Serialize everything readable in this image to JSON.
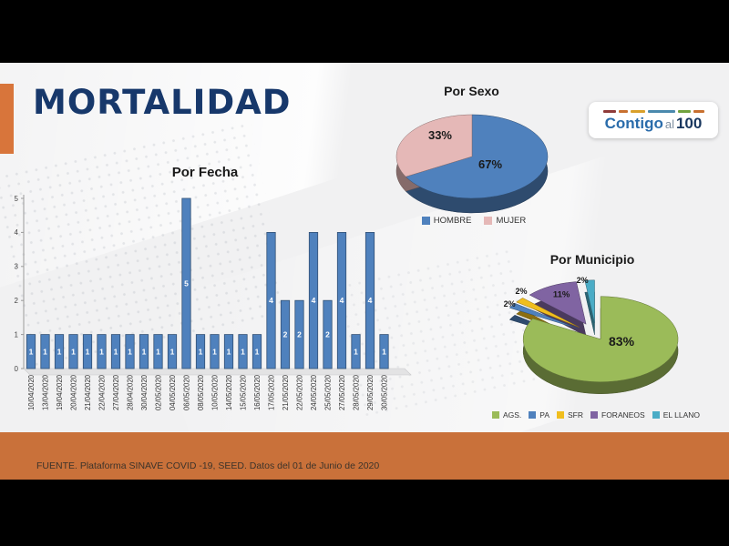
{
  "slide": {
    "title": "MORTALIDAD",
    "footer_text": "FUENTE. Plataforma SINAVE COVID -19, SEED. Datos del 01 de Junio de 2020",
    "logo": {
      "word1": "Contigo",
      "word2": "al",
      "word3": "100",
      "dash_colors": [
        "#8f3b39",
        "#c8702f",
        "#d9a02b",
        "#4a89ad",
        "#71a23e",
        "#c8702f"
      ]
    },
    "colors": {
      "accent_orange": "#D8753B",
      "footer_orange": "#C9713A",
      "title_navy": "#17386B"
    }
  },
  "chart_data": [
    {
      "type": "bar",
      "title": "Por Fecha",
      "categories": [
        "10/04/2020",
        "13/04/2020",
        "19/04/2020",
        "20/04/2020",
        "21/04/2020",
        "22/04/2020",
        "27/04/2020",
        "28/04/2020",
        "30/04/2020",
        "02/05/2020",
        "04/05/2020",
        "06/05/2020",
        "08/05/2020",
        "10/05/2020",
        "14/05/2020",
        "15/05/2020",
        "16/05/2020",
        "17/05/2020",
        "21/05/2020",
        "22/05/2020",
        "24/05/2020",
        "25/05/2020",
        "27/05/2020",
        "28/05/2020",
        "29/05/2020",
        "30/05/2020"
      ],
      "values": [
        1,
        1,
        1,
        1,
        1,
        1,
        1,
        1,
        1,
        1,
        1,
        5,
        1,
        1,
        1,
        1,
        1,
        4,
        2,
        2,
        4,
        2,
        4,
        1,
        4,
        1
      ],
      "xlabel": "",
      "ylabel": "",
      "ylim": [
        0,
        5
      ],
      "yticks": [
        0,
        1,
        2,
        3,
        4,
        5
      ],
      "bar_color": "#4F81BD",
      "data_labels": true,
      "grid": false
    },
    {
      "type": "pie",
      "title": "Por Sexo",
      "legend_position": "bottom",
      "slices": [
        {
          "label": "HOMBRE",
          "value": 67,
          "pct_label": "67%",
          "color": "#4F81BD"
        },
        {
          "label": "MUJER",
          "value": 33,
          "pct_label": "33%",
          "color": "#E5B8B7"
        }
      ]
    },
    {
      "type": "pie",
      "title": "Por Municipio",
      "legend_position": "bottom",
      "exploded": true,
      "slices": [
        {
          "label": "AGS.",
          "value": 83,
          "pct_label": "83%",
          "color": "#9BBB59"
        },
        {
          "label": "PA",
          "value": 2,
          "pct_label": "2%",
          "color": "#4F81BD"
        },
        {
          "label": "SFR",
          "value": 2,
          "pct_label": "2%",
          "color": "#F0BE1E"
        },
        {
          "label": "FORANEOS",
          "value": 11,
          "pct_label": "11%",
          "color": "#8064A2"
        },
        {
          "label": "EL LLANO",
          "value": 2,
          "pct_label": "2%",
          "color": "#4BACC6"
        }
      ]
    }
  ]
}
